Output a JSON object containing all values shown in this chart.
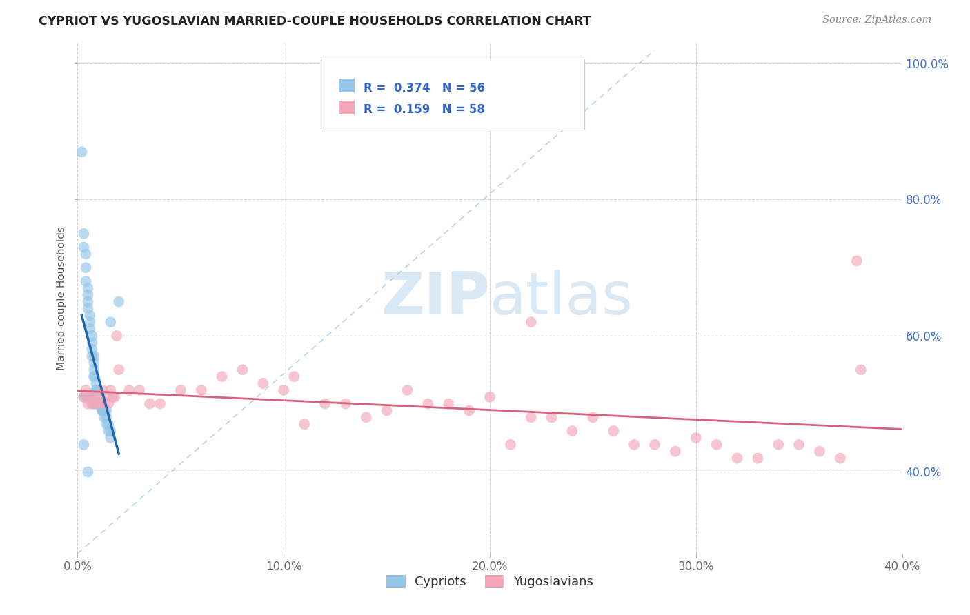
{
  "title": "CYPRIOT VS YUGOSLAVIAN MARRIED-COUPLE HOUSEHOLDS CORRELATION CHART",
  "source": "Source: ZipAtlas.com",
  "ylabel": "Married-couple Households",
  "legend_label_blue": "Cypriots",
  "legend_label_pink": "Yugoslavians",
  "R_blue": 0.374,
  "N_blue": 56,
  "R_pink": 0.159,
  "N_pink": 58,
  "xlim": [
    0.0,
    0.4
  ],
  "ylim": [
    0.28,
    1.03
  ],
  "xticks": [
    0.0,
    0.1,
    0.2,
    0.3,
    0.4
  ],
  "yticks": [
    0.4,
    0.6,
    0.8,
    1.0
  ],
  "color_blue": "#93c6e8",
  "color_pink": "#f4a7b9",
  "color_blue_line": "#2166ac",
  "color_pink_line": "#d6617a",
  "color_dashed": "#aac8e0",
  "watermark_zip": "ZIP",
  "watermark_atlas": "atlas",
  "blue_x": [
    0.002,
    0.003,
    0.003,
    0.004,
    0.004,
    0.004,
    0.005,
    0.005,
    0.005,
    0.005,
    0.006,
    0.006,
    0.006,
    0.007,
    0.007,
    0.007,
    0.007,
    0.008,
    0.008,
    0.008,
    0.008,
    0.008,
    0.009,
    0.009,
    0.009,
    0.01,
    0.01,
    0.01,
    0.011,
    0.011,
    0.012,
    0.012,
    0.012,
    0.013,
    0.013,
    0.014,
    0.014,
    0.015,
    0.015,
    0.016,
    0.016,
    0.003,
    0.004,
    0.005,
    0.006,
    0.007,
    0.008,
    0.009,
    0.01,
    0.011,
    0.012,
    0.014,
    0.016,
    0.003,
    0.005,
    0.02
  ],
  "blue_y": [
    0.87,
    0.75,
    0.73,
    0.72,
    0.7,
    0.68,
    0.67,
    0.66,
    0.65,
    0.64,
    0.63,
    0.62,
    0.61,
    0.6,
    0.59,
    0.58,
    0.57,
    0.57,
    0.56,
    0.55,
    0.54,
    0.54,
    0.53,
    0.52,
    0.52,
    0.52,
    0.51,
    0.5,
    0.5,
    0.5,
    0.5,
    0.49,
    0.49,
    0.49,
    0.48,
    0.48,
    0.47,
    0.47,
    0.46,
    0.46,
    0.45,
    0.51,
    0.51,
    0.51,
    0.51,
    0.5,
    0.5,
    0.5,
    0.5,
    0.5,
    0.49,
    0.49,
    0.62,
    0.44,
    0.4,
    0.65
  ],
  "pink_x": [
    0.003,
    0.004,
    0.005,
    0.006,
    0.007,
    0.008,
    0.009,
    0.01,
    0.011,
    0.012,
    0.013,
    0.014,
    0.015,
    0.016,
    0.017,
    0.018,
    0.019,
    0.02,
    0.025,
    0.03,
    0.035,
    0.04,
    0.05,
    0.06,
    0.07,
    0.08,
    0.09,
    0.1,
    0.11,
    0.12,
    0.13,
    0.14,
    0.15,
    0.16,
    0.17,
    0.18,
    0.19,
    0.2,
    0.21,
    0.22,
    0.23,
    0.24,
    0.25,
    0.26,
    0.27,
    0.28,
    0.29,
    0.3,
    0.31,
    0.32,
    0.33,
    0.34,
    0.35,
    0.36,
    0.37,
    0.38,
    0.105,
    0.22
  ],
  "pink_y": [
    0.51,
    0.52,
    0.5,
    0.51,
    0.5,
    0.51,
    0.5,
    0.5,
    0.51,
    0.52,
    0.5,
    0.51,
    0.5,
    0.52,
    0.51,
    0.51,
    0.6,
    0.55,
    0.52,
    0.52,
    0.5,
    0.5,
    0.52,
    0.52,
    0.54,
    0.55,
    0.53,
    0.52,
    0.47,
    0.5,
    0.5,
    0.48,
    0.49,
    0.52,
    0.5,
    0.5,
    0.49,
    0.51,
    0.44,
    0.48,
    0.48,
    0.46,
    0.48,
    0.46,
    0.44,
    0.44,
    0.43,
    0.45,
    0.44,
    0.42,
    0.42,
    0.44,
    0.44,
    0.43,
    0.42,
    0.55,
    0.54,
    0.62
  ]
}
